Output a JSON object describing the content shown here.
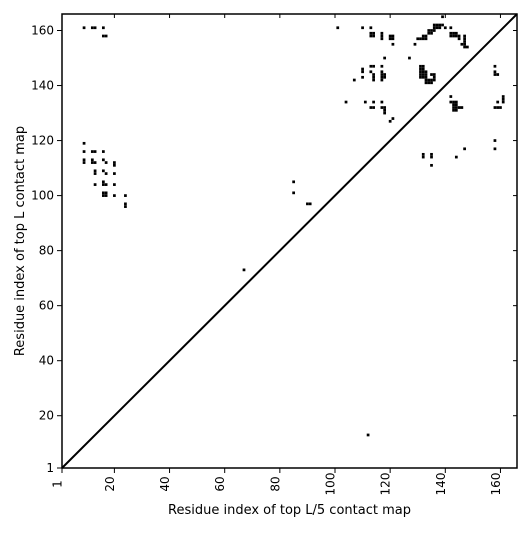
{
  "chart_data": {
    "type": "heatmap",
    "title": "",
    "xlabel": "Residue index of top L/5 contact map",
    "ylabel": "Residue index of top L contact map",
    "xlim": [
      1,
      166
    ],
    "ylim": [
      1,
      166
    ],
    "x_ticks": [
      1,
      20,
      40,
      60,
      80,
      100,
      120,
      140,
      160
    ],
    "y_ticks": [
      1,
      20,
      40,
      60,
      80,
      100,
      120,
      140,
      160
    ],
    "x_tick_rotation": -90,
    "diagonal": true,
    "colors": {
      "contact": "#000000",
      "background": "#ffffff",
      "axis": "#000000"
    },
    "contacts_upper_left_top_L": [
      [
        9,
        161
      ],
      [
        12,
        161
      ],
      [
        13,
        161
      ],
      [
        16,
        161
      ],
      [
        16,
        158
      ],
      [
        17,
        158
      ],
      [
        9,
        119
      ],
      [
        9,
        116
      ],
      [
        9,
        113
      ],
      [
        9,
        112
      ],
      [
        12,
        116
      ],
      [
        13,
        116
      ],
      [
        12,
        113
      ],
      [
        13,
        112
      ],
      [
        12,
        112
      ],
      [
        16,
        116
      ],
      [
        16,
        113
      ],
      [
        17,
        112
      ],
      [
        20,
        112
      ],
      [
        20,
        111
      ],
      [
        13,
        109
      ],
      [
        13,
        108
      ],
      [
        16,
        109
      ],
      [
        17,
        108
      ],
      [
        20,
        108
      ],
      [
        13,
        104
      ],
      [
        16,
        105
      ],
      [
        16,
        104
      ],
      [
        17,
        104
      ],
      [
        20,
        104
      ],
      [
        16,
        101
      ],
      [
        17,
        101
      ],
      [
        16,
        100
      ],
      [
        17,
        100
      ],
      [
        20,
        100
      ],
      [
        24,
        100
      ],
      [
        24,
        97
      ],
      [
        24,
        96
      ],
      [
        67,
        73
      ],
      [
        85,
        105
      ],
      [
        85,
        101
      ],
      [
        90,
        97
      ],
      [
        91,
        97
      ]
    ],
    "contacts_lower_right_top_L5": [
      [
        112,
        13
      ]
    ],
    "contacts_upper_cluster": [
      [
        101,
        161
      ],
      [
        110,
        161
      ],
      [
        113,
        161
      ],
      [
        113,
        159
      ],
      [
        114,
        159
      ],
      [
        113,
        158
      ],
      [
        114,
        158
      ],
      [
        117,
        159
      ],
      [
        117,
        158
      ],
      [
        117,
        157
      ],
      [
        120,
        158
      ],
      [
        121,
        158
      ],
      [
        120,
        157
      ],
      [
        121,
        157
      ],
      [
        121,
        155
      ],
      [
        118,
        150
      ],
      [
        127,
        150
      ],
      [
        129,
        155
      ],
      [
        130,
        157
      ],
      [
        131,
        157
      ],
      [
        132,
        158
      ],
      [
        133,
        158
      ],
      [
        132,
        157
      ],
      [
        133,
        157
      ],
      [
        134,
        160
      ],
      [
        135,
        160
      ],
      [
        134,
        159
      ],
      [
        135,
        159
      ],
      [
        136,
        162
      ],
      [
        137,
        162
      ],
      [
        138,
        162
      ],
      [
        139,
        162
      ],
      [
        136,
        161
      ],
      [
        137,
        161
      ],
      [
        138,
        161
      ],
      [
        136,
        160
      ],
      [
        140,
        161
      ],
      [
        142,
        161
      ],
      [
        142,
        159
      ],
      [
        143,
        159
      ],
      [
        144,
        159
      ],
      [
        142,
        158
      ],
      [
        143,
        158
      ],
      [
        144,
        158
      ],
      [
        145,
        158
      ],
      [
        145,
        157
      ],
      [
        139,
        165
      ],
      [
        147,
        158
      ],
      [
        147,
        157
      ],
      [
        147,
        156
      ],
      [
        147,
        155
      ],
      [
        147,
        154
      ],
      [
        148,
        154
      ],
      [
        146,
        155
      ],
      [
        110,
        146
      ],
      [
        110,
        145
      ],
      [
        110,
        143
      ],
      [
        113,
        147
      ],
      [
        114,
        147
      ],
      [
        113,
        145
      ],
      [
        114,
        144
      ],
      [
        114,
        143
      ],
      [
        114,
        142
      ],
      [
        117,
        147
      ],
      [
        117,
        145
      ],
      [
        117,
        144
      ],
      [
        118,
        144
      ],
      [
        117,
        143
      ],
      [
        118,
        143
      ],
      [
        117,
        142
      ],
      [
        107,
        142
      ],
      [
        104,
        134
      ],
      [
        111,
        134
      ],
      [
        114,
        134
      ],
      [
        117,
        134
      ],
      [
        113,
        132
      ],
      [
        114,
        132
      ],
      [
        117,
        132
      ],
      [
        118,
        132
      ],
      [
        118,
        131
      ],
      [
        118,
        130
      ],
      [
        121,
        128
      ],
      [
        120,
        127
      ],
      [
        131,
        147
      ],
      [
        132,
        147
      ],
      [
        131,
        146
      ],
      [
        132,
        146
      ],
      [
        131,
        145
      ],
      [
        132,
        145
      ],
      [
        133,
        145
      ],
      [
        131,
        144
      ],
      [
        132,
        144
      ],
      [
        133,
        144
      ],
      [
        135,
        144
      ],
      [
        136,
        144
      ],
      [
        131,
        143
      ],
      [
        132,
        143
      ],
      [
        133,
        143
      ],
      [
        136,
        143
      ],
      [
        133,
        142
      ],
      [
        134,
        142
      ],
      [
        135,
        142
      ],
      [
        136,
        142
      ],
      [
        133,
        141
      ],
      [
        134,
        141
      ],
      [
        135,
        141
      ],
      [
        132,
        115
      ],
      [
        132,
        114
      ],
      [
        135,
        115
      ],
      [
        135,
        114
      ],
      [
        135,
        111
      ],
      [
        144,
        114
      ],
      [
        147,
        117
      ],
      [
        142,
        136
      ],
      [
        142,
        134
      ],
      [
        143,
        134
      ],
      [
        144,
        134
      ],
      [
        143,
        133
      ],
      [
        144,
        133
      ],
      [
        143,
        132
      ],
      [
        144,
        132
      ],
      [
        145,
        132
      ],
      [
        146,
        132
      ],
      [
        143,
        131
      ],
      [
        144,
        131
      ],
      [
        158,
        147
      ],
      [
        158,
        145
      ],
      [
        158,
        144
      ],
      [
        159,
        144
      ],
      [
        158,
        132
      ],
      [
        159,
        132
      ],
      [
        160,
        132
      ],
      [
        161,
        134
      ],
      [
        161,
        135
      ],
      [
        161,
        136
      ],
      [
        158,
        120
      ],
      [
        158,
        117
      ],
      [
        159,
        134
      ]
    ]
  }
}
